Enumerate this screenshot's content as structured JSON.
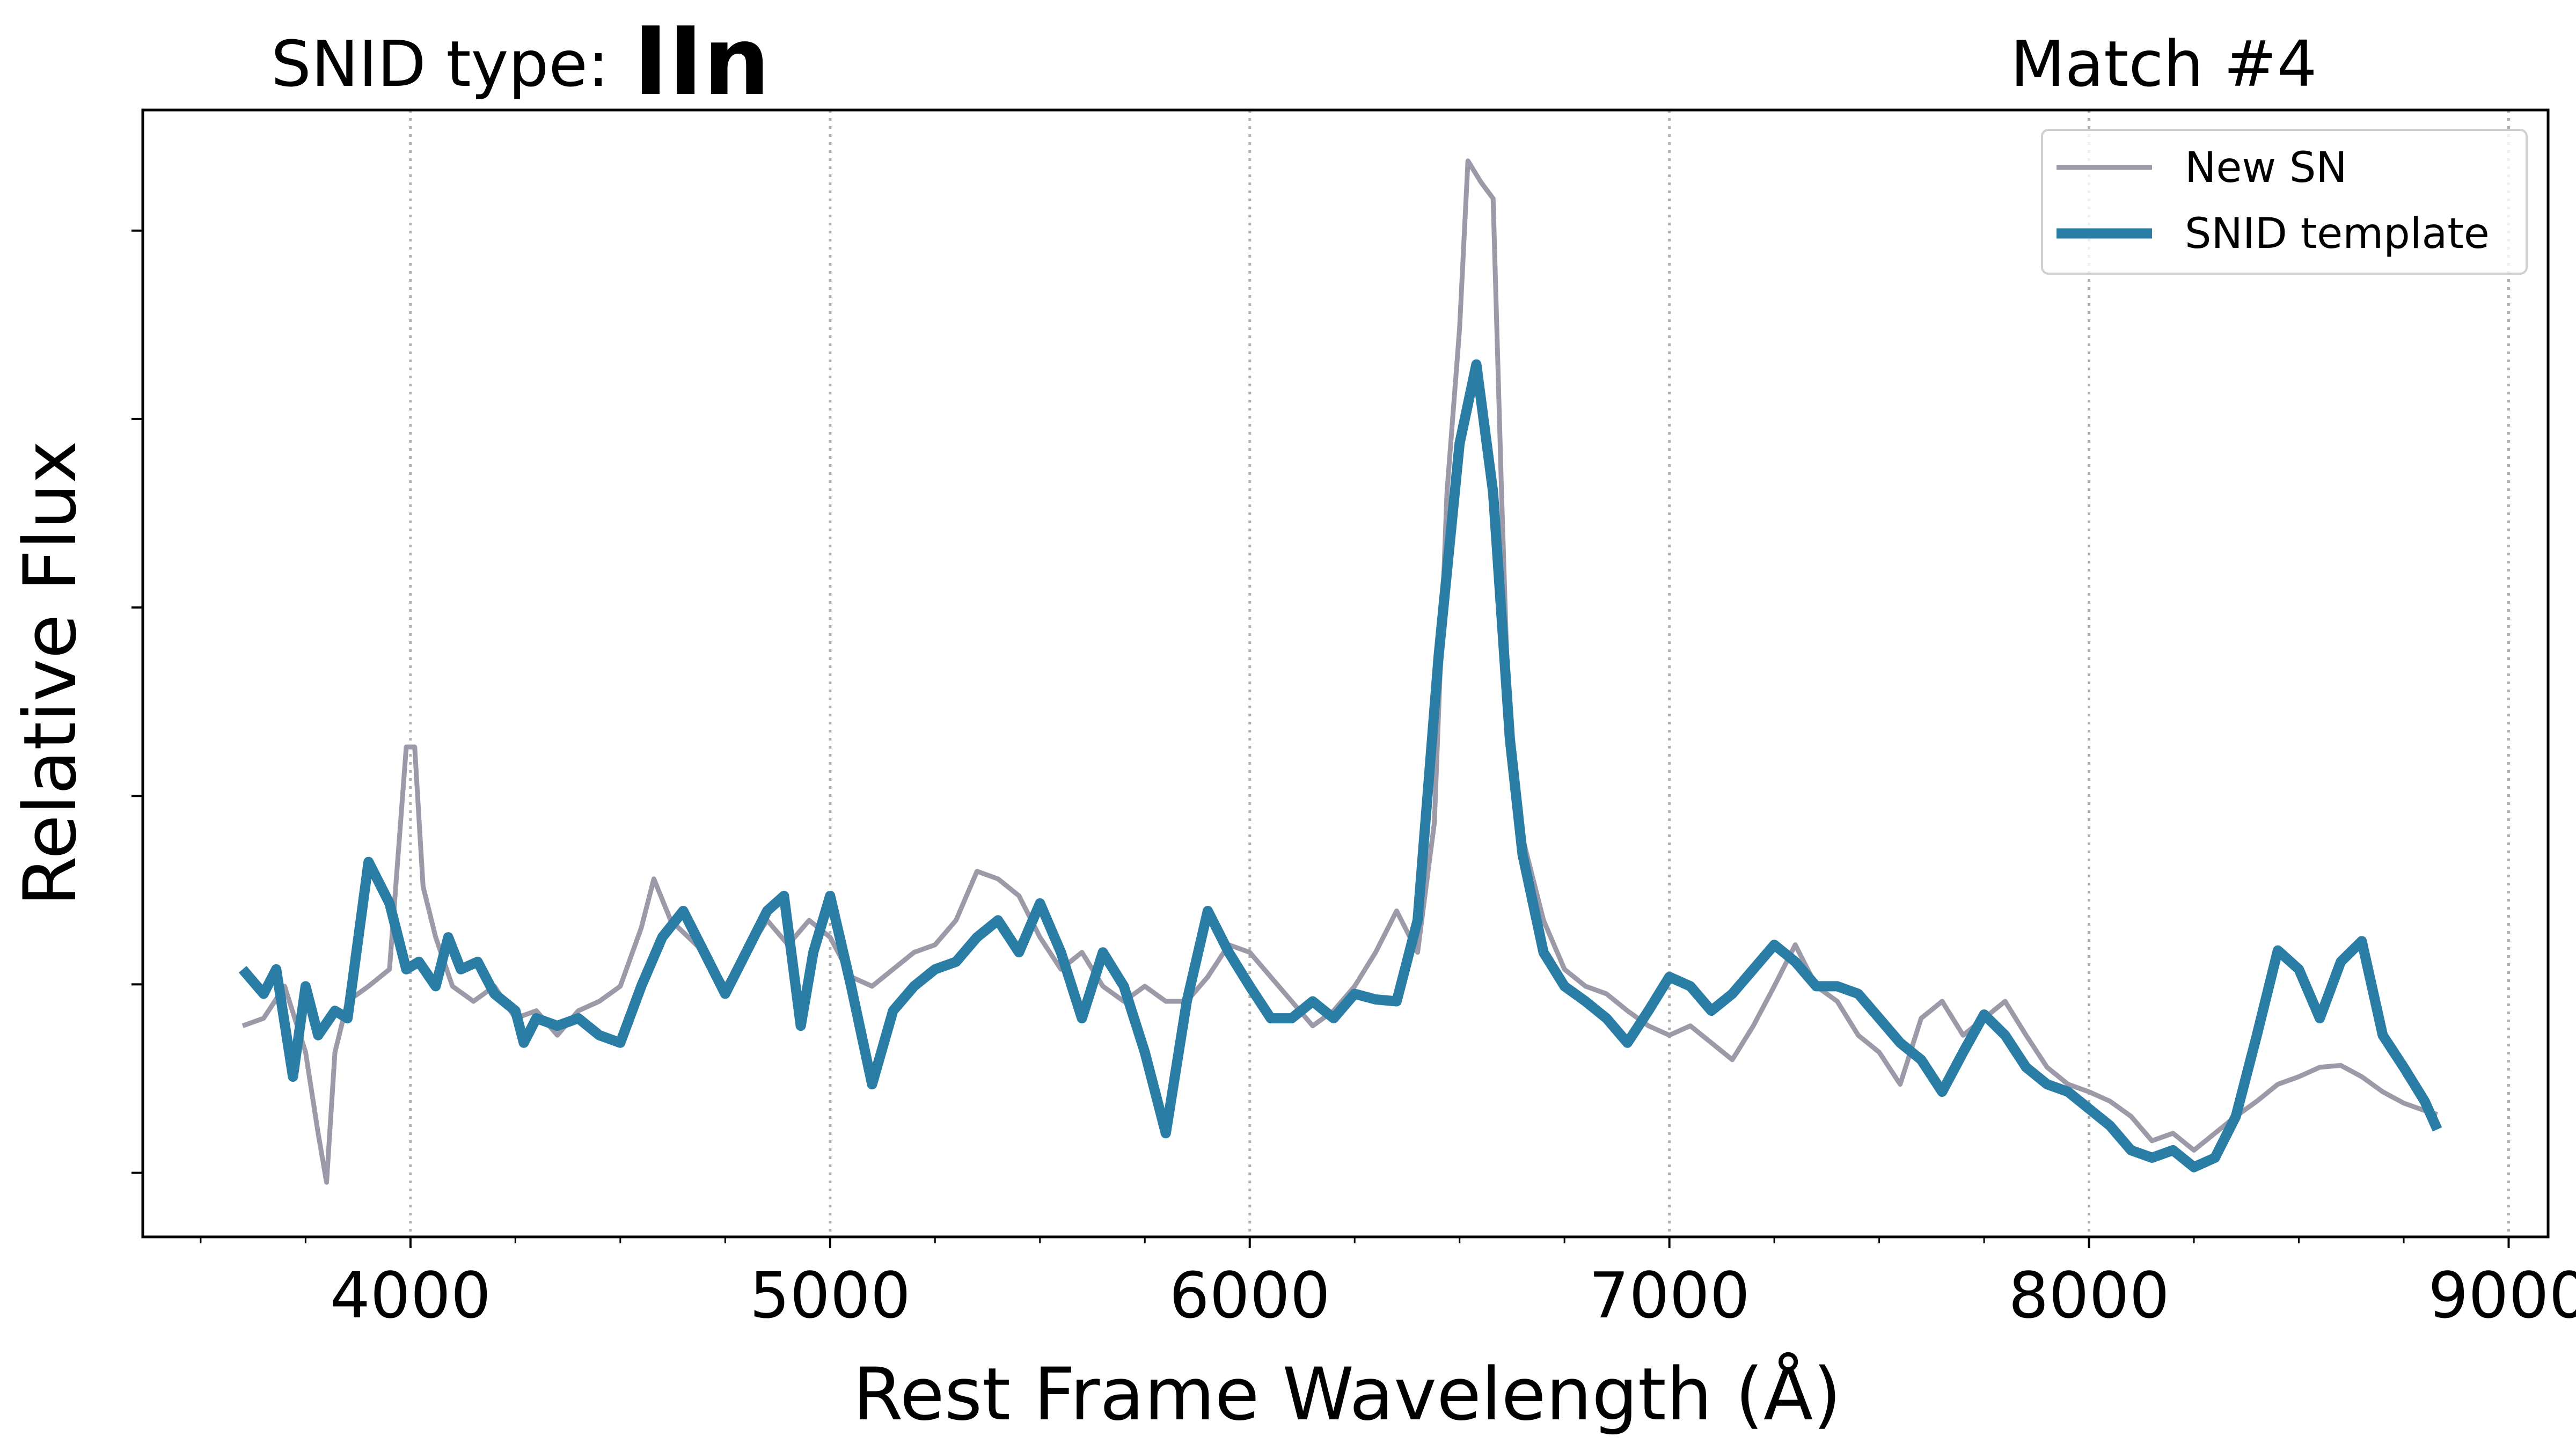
{
  "chart_data": {
    "type": "line",
    "title": "SNID type:",
    "subtitle": "IIn",
    "title_right": "Match #4",
    "xlabel": "Rest Frame Wavelength (Å)",
    "ylabel": "Relative Flux",
    "xlim": [
      3362,
      9094
    ],
    "ylim": [
      -0.34,
      5.64
    ],
    "xticks": [
      4000,
      5000,
      6000,
      7000,
      8000,
      9000
    ],
    "xminorticks": [
      3500,
      3750,
      4250,
      4500,
      4750,
      5250,
      5500,
      5750,
      6250,
      6500,
      6750,
      7250,
      7500,
      7750,
      8250,
      8500,
      8750
    ],
    "yticks": [
      0,
      1,
      2,
      3,
      4,
      5
    ],
    "grid": "x",
    "legend": "upper right",
    "title_color": "#2a7da5",
    "series": [
      {
        "name": "New SN",
        "color": "#9c9aa8",
        "x": [
          3600,
          3650,
          3700,
          3750,
          3780,
          3800,
          3820,
          3850,
          3900,
          3950,
          3990,
          4010,
          4030,
          4060,
          4100,
          4150,
          4200,
          4250,
          4300,
          4350,
          4400,
          4450,
          4500,
          4550,
          4580,
          4620,
          4700,
          4750,
          4800,
          4850,
          4900,
          4950,
          5000,
          5050,
          5100,
          5150,
          5200,
          5250,
          5300,
          5350,
          5400,
          5450,
          5500,
          5550,
          5600,
          5650,
          5700,
          5750,
          5800,
          5850,
          5900,
          5950,
          6000,
          6050,
          6100,
          6150,
          6200,
          6250,
          6300,
          6350,
          6400,
          6440,
          6470,
          6500,
          6520,
          6550,
          6580,
          6600,
          6620,
          6650,
          6700,
          6750,
          6800,
          6850,
          6900,
          6950,
          7000,
          7050,
          7100,
          7150,
          7200,
          7250,
          7300,
          7350,
          7400,
          7450,
          7500,
          7550,
          7600,
          7650,
          7700,
          7750,
          7800,
          7850,
          7900,
          7950,
          8000,
          8050,
          8100,
          8150,
          8200,
          8250,
          8300,
          8350,
          8400,
          8450,
          8500,
          8550,
          8600,
          8650,
          8700,
          8750,
          8800,
          8830
        ],
        "values": [
          0.78,
          0.82,
          0.99,
          0.64,
          0.21,
          -0.05,
          0.64,
          0.91,
          0.99,
          1.08,
          2.26,
          2.26,
          1.52,
          1.25,
          0.99,
          0.91,
          0.99,
          0.82,
          0.86,
          0.73,
          0.86,
          0.91,
          0.99,
          1.3,
          1.56,
          1.34,
          1.17,
          0.99,
          1.17,
          1.34,
          1.21,
          1.34,
          1.25,
          1.04,
          0.99,
          1.08,
          1.17,
          1.21,
          1.34,
          1.6,
          1.56,
          1.47,
          1.25,
          1.08,
          1.17,
          0.99,
          0.91,
          0.99,
          0.91,
          0.91,
          1.04,
          1.21,
          1.17,
          1.04,
          0.91,
          0.78,
          0.86,
          0.99,
          1.17,
          1.39,
          1.17,
          1.86,
          3.61,
          4.48,
          5.37,
          5.26,
          5.17,
          3.61,
          2.21,
          1.78,
          1.34,
          1.08,
          0.99,
          0.95,
          0.86,
          0.78,
          0.73,
          0.78,
          0.69,
          0.6,
          0.78,
          0.99,
          1.21,
          0.99,
          0.91,
          0.73,
          0.64,
          0.47,
          0.82,
          0.91,
          0.73,
          0.82,
          0.91,
          0.73,
          0.56,
          0.47,
          0.43,
          0.38,
          0.3,
          0.17,
          0.21,
          0.12,
          0.21,
          0.3,
          0.38,
          0.47,
          0.51,
          0.56,
          0.57,
          0.51,
          0.43,
          0.37,
          0.33,
          0.31
        ]
      },
      {
        "name": "SNID template",
        "color": "#2a7da5",
        "x": [
          3600,
          3650,
          3680,
          3720,
          3750,
          3780,
          3820,
          3850,
          3900,
          3950,
          3990,
          4020,
          4060,
          4090,
          4120,
          4160,
          4200,
          4250,
          4270,
          4300,
          4350,
          4400,
          4450,
          4500,
          4550,
          4600,
          4650,
          4700,
          4750,
          4800,
          4850,
          4890,
          4930,
          4960,
          5000,
          5050,
          5100,
          5150,
          5200,
          5250,
          5300,
          5350,
          5400,
          5450,
          5500,
          5550,
          5600,
          5650,
          5700,
          5750,
          5800,
          5850,
          5900,
          5950,
          6000,
          6050,
          6100,
          6150,
          6200,
          6250,
          6300,
          6350,
          6400,
          6450,
          6500,
          6540,
          6580,
          6620,
          6650,
          6700,
          6750,
          6800,
          6850,
          6900,
          6950,
          7000,
          7050,
          7100,
          7150,
          7200,
          7250,
          7300,
          7350,
          7400,
          7450,
          7500,
          7550,
          7600,
          7650,
          7700,
          7750,
          7800,
          7850,
          7900,
          7950,
          8000,
          8050,
          8100,
          8150,
          8200,
          8250,
          8300,
          8350,
          8400,
          8450,
          8500,
          8550,
          8600,
          8650,
          8700,
          8750,
          8800,
          8830
        ],
        "values": [
          1.08,
          0.95,
          1.08,
          0.51,
          0.99,
          0.73,
          0.86,
          0.82,
          1.65,
          1.43,
          1.08,
          1.12,
          0.99,
          1.25,
          1.08,
          1.12,
          0.95,
          0.86,
          0.69,
          0.82,
          0.78,
          0.82,
          0.73,
          0.69,
          0.99,
          1.25,
          1.39,
          1.17,
          0.95,
          1.17,
          1.39,
          1.47,
          0.78,
          1.17,
          1.47,
          0.99,
          0.47,
          0.86,
          0.99,
          1.08,
          1.12,
          1.25,
          1.34,
          1.17,
          1.43,
          1.17,
          0.82,
          1.17,
          0.99,
          0.64,
          0.21,
          0.91,
          1.39,
          1.17,
          0.99,
          0.82,
          0.82,
          0.91,
          0.82,
          0.95,
          0.92,
          0.91,
          1.34,
          2.74,
          3.87,
          4.29,
          3.61,
          2.3,
          1.69,
          1.17,
          0.99,
          0.91,
          0.82,
          0.69,
          0.86,
          1.04,
          0.99,
          0.86,
          0.95,
          1.08,
          1.21,
          1.12,
          0.99,
          0.99,
          0.95,
          0.82,
          0.69,
          0.6,
          0.43,
          0.64,
          0.84,
          0.73,
          0.56,
          0.47,
          0.43,
          0.34,
          0.25,
          0.12,
          0.08,
          0.12,
          0.03,
          0.08,
          0.3,
          0.73,
          1.18,
          1.08,
          0.82,
          1.12,
          1.23,
          0.73,
          0.56,
          0.38,
          0.23
        ]
      }
    ]
  }
}
